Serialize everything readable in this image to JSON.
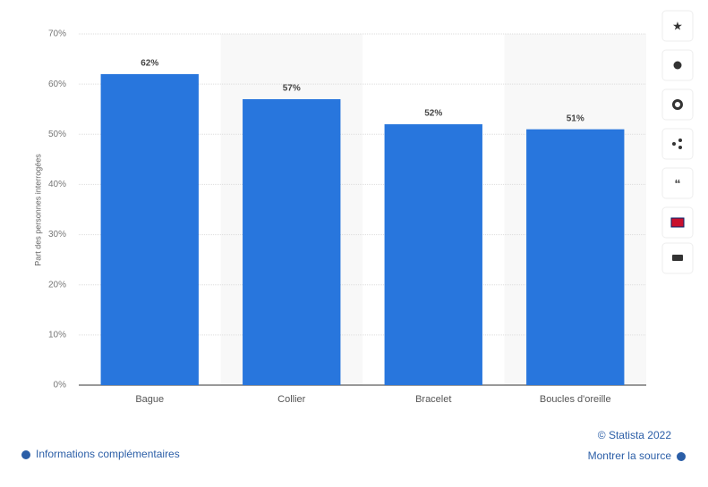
{
  "chart_data": {
    "type": "bar",
    "categories": [
      "Bague",
      "Collier",
      "Bracelet",
      "Boucles d'oreille"
    ],
    "values": [
      62,
      57,
      52,
      51
    ],
    "value_labels": [
      "62%",
      "57%",
      "52%",
      "51%"
    ],
    "color": "#2876dd",
    "ylabel": "Part des personnes interrogées",
    "ylim": [
      0,
      70
    ],
    "yticks": [
      {
        "value": 0,
        "label": "0%"
      },
      {
        "value": 10,
        "label": "10%"
      },
      {
        "value": 20,
        "label": "20%"
      },
      {
        "value": 30,
        "label": "30%"
      },
      {
        "value": 40,
        "label": "40%"
      },
      {
        "value": 50,
        "label": "50%"
      },
      {
        "value": 60,
        "label": "60%"
      },
      {
        "value": 70,
        "label": "70%"
      }
    ],
    "grid": true
  },
  "footer": {
    "copyright": "© Statista 2022",
    "info": "Informations complémentaires",
    "source": "Montrer la source"
  }
}
